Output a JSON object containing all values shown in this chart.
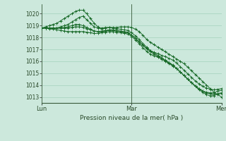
{
  "background_color": "#cce8dc",
  "grid_color": "#99ccb3",
  "line_color": "#1a6b2a",
  "marker_color": "#1a6b2a",
  "xlabel": "Pression niveau de la mer( hPa )",
  "ylim": [
    1012.5,
    1020.8
  ],
  "yticks": [
    1013,
    1014,
    1015,
    1016,
    1017,
    1018,
    1019,
    1020
  ],
  "xtick_positions": [
    0,
    24,
    48
  ],
  "xtick_labels": [
    "Lun",
    "Mar",
    "Mer"
  ],
  "n_points": 49,
  "series": [
    [
      1018.8,
      1018.8,
      1018.8,
      1018.8,
      1018.8,
      1018.9,
      1019.0,
      1019.1,
      1019.3,
      1019.5,
      1019.7,
      1019.8,
      1019.5,
      1019.2,
      1018.9,
      1018.8,
      1018.8,
      1018.85,
      1018.85,
      1018.85,
      1018.85,
      1018.9,
      1018.9,
      1018.9,
      1018.85,
      1018.7,
      1018.5,
      1018.2,
      1017.85,
      1017.6,
      1017.4,
      1017.2,
      1017.0,
      1016.8,
      1016.6,
      1016.4,
      1016.2,
      1016.0,
      1015.8,
      1015.5,
      1015.2,
      1014.9,
      1014.6,
      1014.3,
      1014.0,
      1013.7,
      1013.4,
      1013.2,
      1013.0
    ],
    [
      1018.8,
      1018.9,
      1019.0,
      1019.1,
      1019.2,
      1019.4,
      1019.6,
      1019.8,
      1020.0,
      1020.2,
      1020.3,
      1020.3,
      1020.0,
      1019.6,
      1019.2,
      1018.9,
      1018.7,
      1018.8,
      1018.85,
      1018.8,
      1018.75,
      1018.7,
      1018.65,
      1018.6,
      1018.4,
      1018.15,
      1017.85,
      1017.5,
      1017.2,
      1016.9,
      1016.7,
      1016.5,
      1016.3,
      1016.1,
      1015.9,
      1015.7,
      1015.4,
      1015.1,
      1014.8,
      1014.5,
      1014.2,
      1013.9,
      1013.6,
      1013.4,
      1013.2,
      1013.1,
      1013.1,
      1013.3,
      1013.35
    ],
    [
      1018.8,
      1018.8,
      1018.8,
      1018.8,
      1018.8,
      1018.8,
      1018.85,
      1018.9,
      1019.0,
      1019.1,
      1019.1,
      1019.0,
      1018.85,
      1018.7,
      1018.55,
      1018.5,
      1018.55,
      1018.6,
      1018.65,
      1018.65,
      1018.6,
      1018.55,
      1018.5,
      1018.45,
      1018.2,
      1017.95,
      1017.65,
      1017.35,
      1017.05,
      1016.8,
      1016.6,
      1016.4,
      1016.2,
      1016.0,
      1015.8,
      1015.6,
      1015.4,
      1015.1,
      1014.8,
      1014.5,
      1014.2,
      1013.9,
      1013.7,
      1013.5,
      1013.4,
      1013.35,
      1013.35,
      1013.5,
      1013.55
    ],
    [
      1018.8,
      1018.8,
      1018.8,
      1018.8,
      1018.8,
      1018.8,
      1018.8,
      1018.8,
      1018.85,
      1018.9,
      1018.9,
      1018.85,
      1018.75,
      1018.65,
      1018.55,
      1018.5,
      1018.5,
      1018.55,
      1018.6,
      1018.6,
      1018.55,
      1018.5,
      1018.45,
      1018.4,
      1018.2,
      1017.95,
      1017.65,
      1017.35,
      1017.1,
      1016.9,
      1016.75,
      1016.65,
      1016.5,
      1016.4,
      1016.25,
      1016.1,
      1015.85,
      1015.55,
      1015.25,
      1014.95,
      1014.65,
      1014.35,
      1014.1,
      1013.9,
      1013.75,
      1013.65,
      1013.6,
      1013.65,
      1013.7
    ],
    [
      1018.8,
      1018.8,
      1018.75,
      1018.7,
      1018.65,
      1018.6,
      1018.55,
      1018.5,
      1018.5,
      1018.5,
      1018.5,
      1018.5,
      1018.45,
      1018.4,
      1018.35,
      1018.35,
      1018.4,
      1018.45,
      1018.5,
      1018.5,
      1018.45,
      1018.4,
      1018.35,
      1018.3,
      1018.1,
      1017.8,
      1017.5,
      1017.15,
      1016.85,
      1016.6,
      1016.45,
      1016.35,
      1016.2,
      1016.05,
      1015.85,
      1015.65,
      1015.4,
      1015.1,
      1014.8,
      1014.5,
      1014.2,
      1013.95,
      1013.7,
      1013.5,
      1013.35,
      1013.25,
      1013.2,
      1013.25,
      1013.3
    ]
  ]
}
